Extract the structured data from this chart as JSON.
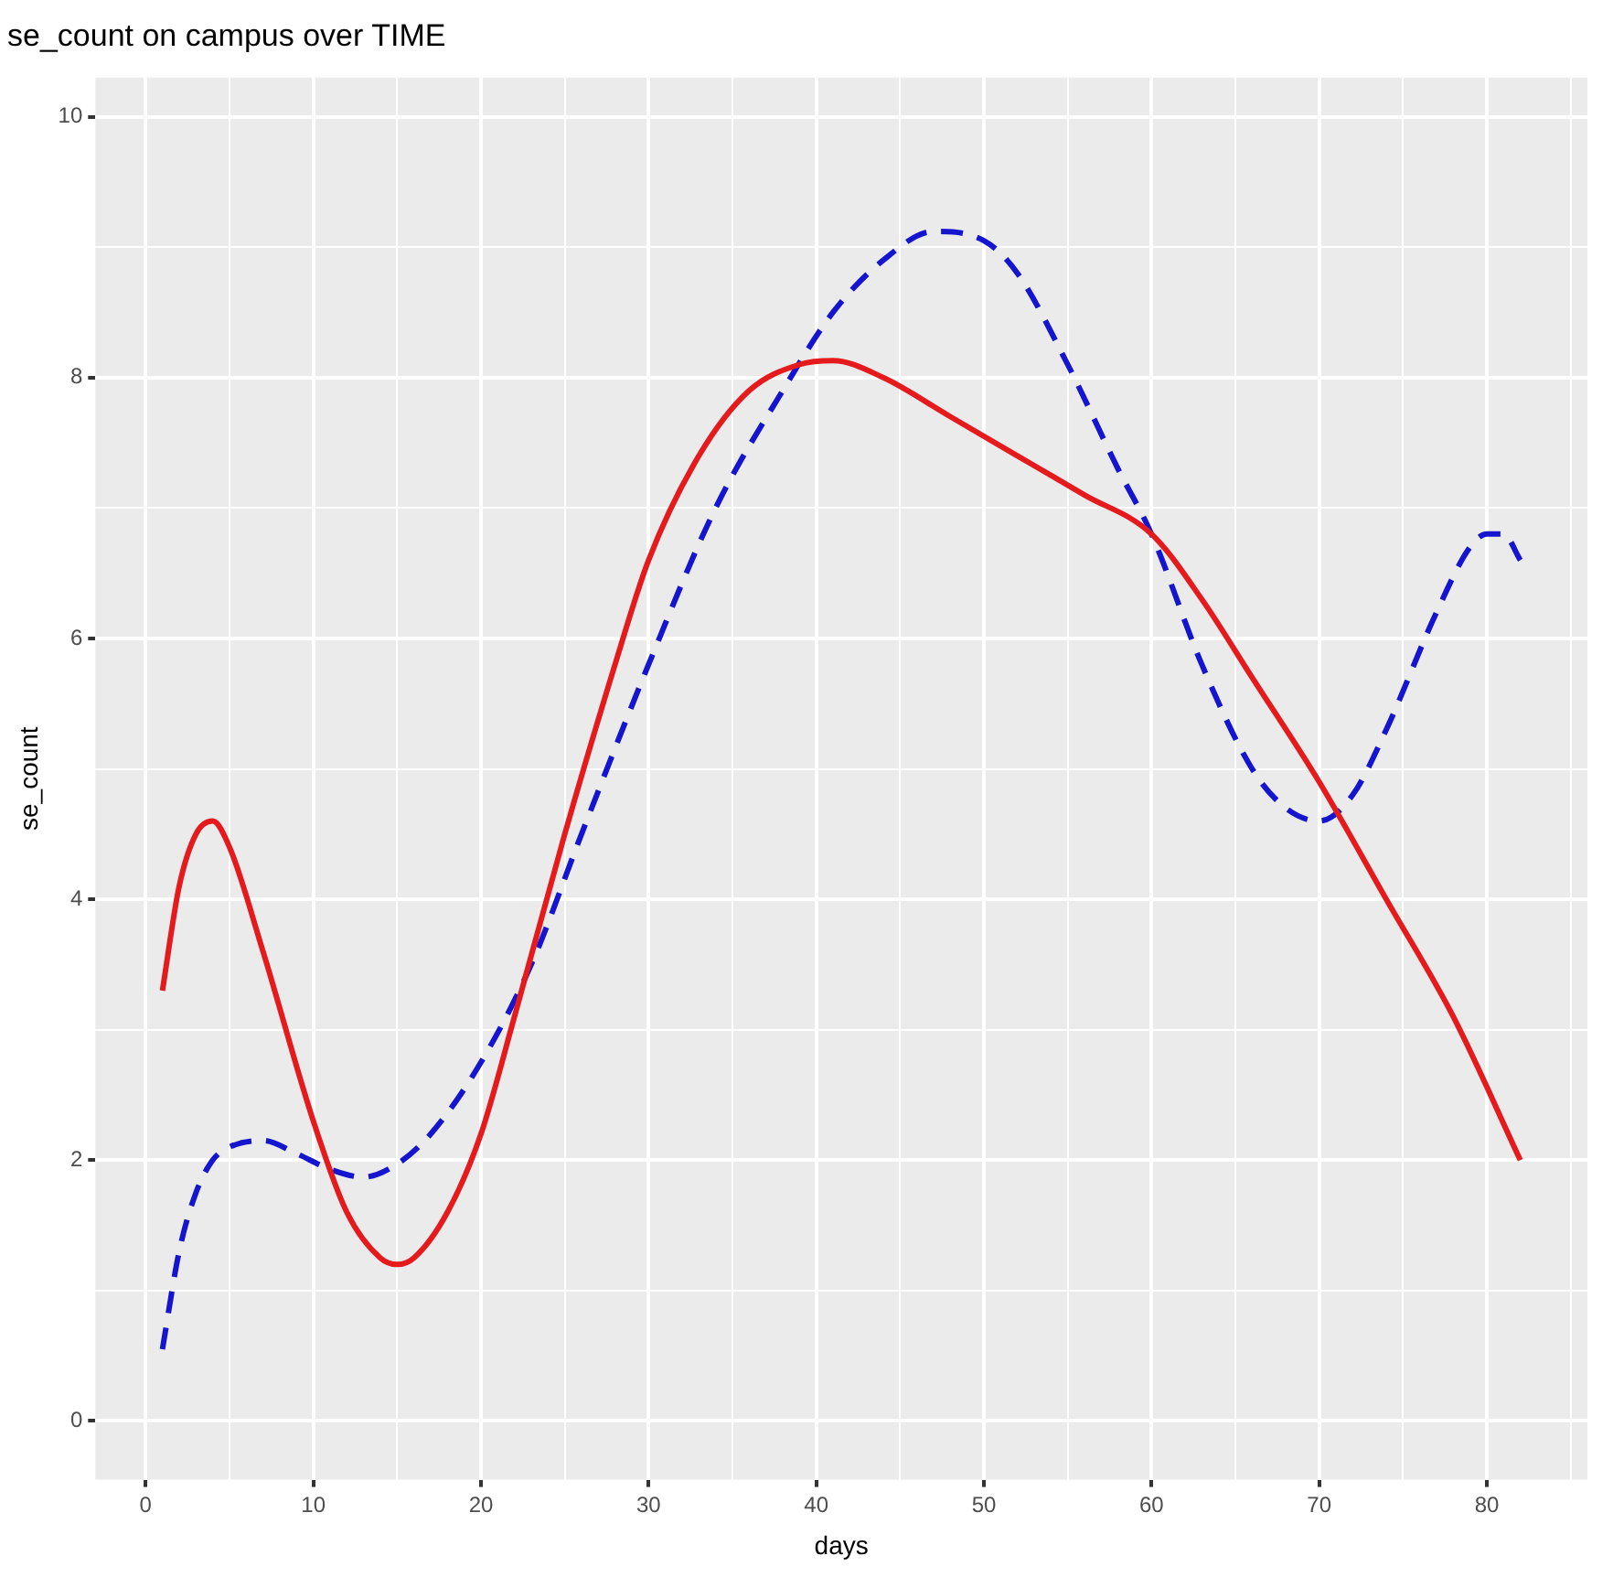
{
  "chart_data": {
    "type": "line",
    "title": "se_count on campus over TIME",
    "xlabel": "days",
    "ylabel": "se_count",
    "xlim": [
      -3,
      86
    ],
    "ylim": [
      -0.45,
      10.3
    ],
    "xticks": [
      0,
      {
        "value": 5,
        "label": null
      },
      10,
      {
        "value": 15,
        "label": null
      },
      20,
      {
        "value": 25,
        "label": null
      },
      30,
      {
        "value": 35,
        "label": null
      },
      40,
      {
        "value": 45,
        "label": null
      },
      50,
      {
        "value": 55,
        "label": null
      },
      60,
      {
        "value": 65,
        "label": null
      },
      70,
      {
        "value": 75,
        "label": null
      },
      80,
      {
        "value": 85,
        "label": null
      }
    ],
    "yticks": [
      0,
      {
        "value": 1,
        "label": null
      },
      2,
      {
        "value": 3,
        "label": null
      },
      4,
      {
        "value": 5,
        "label": null
      },
      6,
      {
        "value": 7,
        "label": null
      },
      8,
      {
        "value": 9,
        "label": null
      },
      10
    ],
    "grid": true,
    "marker": "none",
    "series": [
      {
        "color": "#e41a1c",
        "line_style": "solid",
        "x": [
          1,
          2,
          3,
          4,
          5,
          7,
          10,
          12,
          14,
          15,
          16,
          18,
          20,
          22,
          25,
          28,
          30,
          33,
          36,
          39,
          41,
          44,
          48,
          52,
          56,
          60,
          63,
          66,
          70,
          74,
          78,
          82
        ],
        "values": [
          3.3,
          4.1,
          4.5,
          4.6,
          4.4,
          3.6,
          2.3,
          1.6,
          1.25,
          1.2,
          1.25,
          1.6,
          2.2,
          3.1,
          4.5,
          5.8,
          6.6,
          7.4,
          7.9,
          8.1,
          8.13,
          8.0,
          7.7,
          7.4,
          7.1,
          6.8,
          6.3,
          5.7,
          4.9,
          4.0,
          3.1,
          2.0
        ]
      },
      {
        "color": "#1515d0",
        "line_style": "dashed",
        "x": [
          1,
          2,
          3,
          4,
          5,
          7,
          9,
          11,
          13,
          15,
          17,
          20,
          23,
          26,
          30,
          34,
          38,
          41,
          44,
          47,
          50,
          52,
          55,
          58,
          60,
          63,
          66,
          68,
          70,
          72,
          74,
          77,
          79,
          80,
          81,
          82
        ],
        "values": [
          0.55,
          1.3,
          1.75,
          2.0,
          2.1,
          2.15,
          2.05,
          1.93,
          1.87,
          1.97,
          2.2,
          2.75,
          3.5,
          4.5,
          5.8,
          7.0,
          7.9,
          8.5,
          8.9,
          9.12,
          9.05,
          8.8,
          8.1,
          7.3,
          6.8,
          5.8,
          5.0,
          4.7,
          4.6,
          4.8,
          5.3,
          6.2,
          6.7,
          6.8,
          6.8,
          6.6
        ]
      }
    ]
  }
}
